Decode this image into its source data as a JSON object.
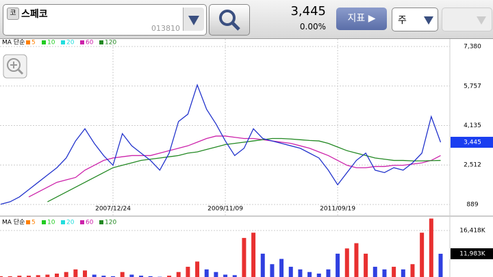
{
  "header": {
    "icon": "코",
    "name": "스페코",
    "code": "013810",
    "price": "3,445",
    "change": "0.00%",
    "indicator_button": "지표 ▶",
    "period": "주"
  },
  "chart_data": {
    "type": "line",
    "categories": [
      null,
      null,
      null,
      null,
      null,
      null,
      null,
      null,
      null,
      null,
      null,
      null,
      "2007/12/24",
      null,
      null,
      null,
      null,
      null,
      null,
      null,
      null,
      null,
      null,
      null,
      "2009/11/09",
      null,
      null,
      null,
      null,
      null,
      null,
      null,
      null,
      null,
      null,
      null,
      "2011/09/19",
      null,
      null,
      null,
      null,
      null,
      null,
      null,
      null,
      null,
      null,
      null
    ],
    "values": [
      900,
      1000,
      1200,
      1500,
      1800,
      2100,
      2400,
      2800,
      3500,
      4000,
      3400,
      2900,
      2500,
      3800,
      3300,
      3000,
      2700,
      2300,
      3000,
      4300,
      4600,
      5800,
      4800,
      4200,
      3500,
      2900,
      3200,
      4000,
      3600,
      3500,
      3400,
      3300,
      3200,
      3000,
      2800,
      2300,
      1700,
      2200,
      2700,
      3000,
      2300,
      2200,
      2400,
      2300,
      2600,
      3000,
      4500,
      3445
    ],
    "color": "#2233cc",
    "current_label": "3,445",
    "ylim": [
      439,
      7689
    ],
    "yticks": [
      {
        "value": 7380,
        "label": "7,380"
      },
      {
        "value": 5757,
        "label": "5,757"
      },
      {
        "value": 4135,
        "label": "4,135"
      },
      {
        "value": 2512,
        "label": "2,512"
      },
      {
        "value": 889,
        "label": "889"
      }
    ],
    "grid": true,
    "ma_legend": {
      "label": "MA 단순",
      "items": [
        {
          "name": "5",
          "color": "#ff8000"
        },
        {
          "name": "10",
          "color": "#22cc22"
        },
        {
          "name": "20",
          "color": "#22dddd"
        },
        {
          "name": "60",
          "color": "#cc22aa",
          "values": [
            null,
            null,
            null,
            1200,
            1400,
            1600,
            1800,
            1900,
            2000,
            2300,
            2500,
            2700,
            2800,
            2850,
            2900,
            2900,
            2900,
            3000,
            3100,
            3200,
            3300,
            3450,
            3600,
            3700,
            3700,
            3650,
            3600,
            3600,
            3550,
            3500,
            3450,
            3400,
            3300,
            3200,
            3050,
            2900,
            2700,
            2500,
            2400,
            2400,
            2450,
            2450,
            2500,
            2500,
            2550,
            2600,
            2700,
            2900
          ]
        },
        {
          "name": "120",
          "color": "#228822",
          "values": [
            null,
            null,
            null,
            null,
            null,
            1000,
            1200,
            1400,
            1600,
            1800,
            2000,
            2200,
            2400,
            2500,
            2600,
            2700,
            2750,
            2800,
            2850,
            2900,
            3000,
            3050,
            3150,
            3250,
            3350,
            3400,
            3450,
            3500,
            3550,
            3600,
            3600,
            3580,
            3550,
            3520,
            3500,
            3400,
            3250,
            3100,
            3000,
            2900,
            2800,
            2750,
            2700,
            2700,
            2680,
            2680,
            2690,
            2700
          ]
        }
      ]
    },
    "volume": {
      "type": "bar",
      "values": [
        7700,
        7700,
        7800,
        7800,
        7900,
        8000,
        8200,
        8500,
        9000,
        8800,
        8000,
        7800,
        7700,
        8500,
        8000,
        7800,
        7700,
        7600,
        7800,
        8500,
        9500,
        10500,
        9000,
        8500,
        8000,
        7900,
        15000,
        16000,
        12000,
        10000,
        11000,
        9500,
        9000,
        8500,
        8200,
        9000,
        12000,
        13000,
        14000,
        12000,
        9500,
        9000,
        9500,
        9000,
        10000,
        16000,
        18700,
        11983
      ],
      "ylim": [
        7550,
        18900
      ],
      "yticks": [
        {
          "value": 16418,
          "label": "16,418K"
        }
      ],
      "current_label": "11,983K"
    }
  }
}
